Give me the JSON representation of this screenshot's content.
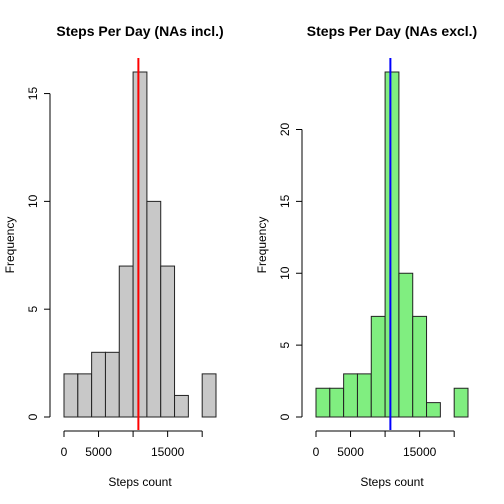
{
  "chart_data": [
    {
      "type": "bar",
      "title": "Steps Per Day (NAs incl.)",
      "xlabel": "Steps count",
      "ylabel": "Frequency",
      "bin_edges": [
        0,
        2000,
        4000,
        6000,
        8000,
        10000,
        12000,
        14000,
        16000,
        18000,
        20000,
        22000
      ],
      "values": [
        2,
        2,
        3,
        3,
        7,
        16,
        10,
        7,
        1,
        0,
        2
      ],
      "xlim": [
        0,
        22000
      ],
      "ylim": [
        0,
        16
      ],
      "x_ticks": [
        0,
        5000,
        15000
      ],
      "x_tick_labels": [
        "0",
        "5000",
        "15000"
      ],
      "x_axis_extent": [
        0,
        20000
      ],
      "y_ticks": [
        0,
        5,
        10,
        15
      ],
      "y_tick_labels": [
        "0",
        "5",
        "10",
        "15"
      ],
      "bar_color": "#c8c8c8",
      "vline": {
        "x": 10766,
        "color": "#ff0000"
      }
    },
    {
      "type": "bar",
      "title": "Steps Per Day (NAs excl.)",
      "xlabel": "Steps count",
      "ylabel": "Frequency",
      "bin_edges": [
        0,
        2000,
        4000,
        6000,
        8000,
        10000,
        12000,
        14000,
        16000,
        18000,
        20000,
        22000
      ],
      "values": [
        2,
        2,
        3,
        3,
        7,
        24,
        10,
        7,
        1,
        0,
        2
      ],
      "xlim": [
        0,
        22000
      ],
      "ylim": [
        0,
        24
      ],
      "x_ticks": [
        0,
        5000,
        15000
      ],
      "x_tick_labels": [
        "0",
        "5000",
        "15000"
      ],
      "x_axis_extent": [
        0,
        20000
      ],
      "y_ticks": [
        0,
        5,
        10,
        15,
        20
      ],
      "y_tick_labels": [
        "0",
        "5",
        "10",
        "15",
        "20"
      ],
      "bar_color": "#80ee80",
      "vline": {
        "x": 10766,
        "color": "#0000ff"
      }
    }
  ]
}
